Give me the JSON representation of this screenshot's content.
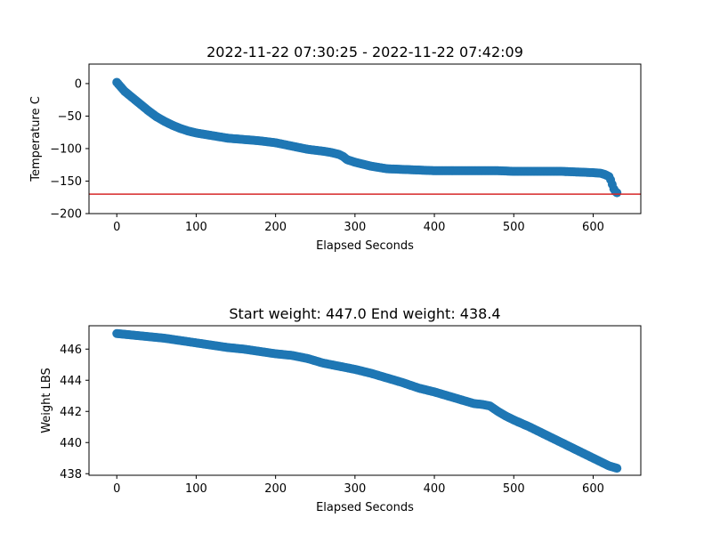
{
  "chart_data": [
    {
      "type": "scatter",
      "title": "2022-11-22 07:30:25 - 2022-11-22 07:42:09",
      "xlabel": "Elapsed Seconds",
      "ylabel": "Temperature C",
      "xlim": [
        -35,
        660
      ],
      "ylim": [
        -200,
        30
      ],
      "xticks": [
        0,
        100,
        200,
        300,
        400,
        500,
        600
      ],
      "yticks": [
        0,
        -50,
        -100,
        -150,
        -200
      ],
      "grid": false,
      "marker_color": "#1f77b4",
      "series": [
        {
          "x": [
            0,
            5,
            10,
            20,
            30,
            40,
            50,
            60,
            70,
            80,
            90,
            100,
            110,
            120,
            140,
            160,
            180,
            200,
            220,
            240,
            260,
            270,
            280,
            285,
            290,
            300,
            310,
            320,
            330,
            340,
            360,
            380,
            400,
            420,
            440,
            460,
            480,
            500,
            520,
            540,
            560,
            580,
            600,
            610,
            615,
            620,
            622,
            624,
            626,
            628,
            630
          ],
          "y": [
            2,
            -5,
            -12,
            -22,
            -32,
            -42,
            -51,
            -58,
            -64,
            -69,
            -73,
            -76,
            -78,
            -80,
            -84,
            -86,
            -88,
            -91,
            -96,
            -101,
            -104,
            -106,
            -109,
            -112,
            -117,
            -121,
            -124,
            -127,
            -129,
            -131,
            -132,
            -133,
            -134,
            -134,
            -134,
            -134,
            -134,
            -135,
            -135,
            -135,
            -135,
            -136,
            -137,
            -138,
            -140,
            -143,
            -148,
            -155,
            -162,
            -166,
            -168
          ]
        }
      ],
      "reference_line": {
        "y": -170,
        "color": "#d62728"
      }
    },
    {
      "type": "scatter",
      "title": "Start weight: 447.0 End weight: 438.4",
      "xlabel": "Elapsed Seconds",
      "ylabel": "Weight LBS",
      "xlim": [
        -35,
        660
      ],
      "ylim": [
        437.9,
        447.5
      ],
      "xticks": [
        0,
        100,
        200,
        300,
        400,
        500,
        600
      ],
      "yticks": [
        438,
        440,
        442,
        444,
        446
      ],
      "grid": false,
      "marker_color": "#1f77b4",
      "series": [
        {
          "x": [
            0,
            10,
            20,
            30,
            40,
            50,
            60,
            80,
            100,
            120,
            140,
            160,
            180,
            200,
            220,
            240,
            260,
            280,
            300,
            320,
            340,
            360,
            380,
            400,
            420,
            440,
            450,
            460,
            470,
            480,
            490,
            500,
            520,
            540,
            560,
            580,
            600,
            610,
            620,
            630
          ],
          "y": [
            447.0,
            446.95,
            446.9,
            446.85,
            446.8,
            446.75,
            446.7,
            446.55,
            446.4,
            446.25,
            446.1,
            446.0,
            445.85,
            445.7,
            445.6,
            445.4,
            445.1,
            444.9,
            444.7,
            444.45,
            444.15,
            443.85,
            443.5,
            443.25,
            442.95,
            442.65,
            442.5,
            442.45,
            442.35,
            442.0,
            441.7,
            441.45,
            441.0,
            440.5,
            440.0,
            439.5,
            439.0,
            438.75,
            438.5,
            438.35
          ]
        }
      ]
    }
  ]
}
